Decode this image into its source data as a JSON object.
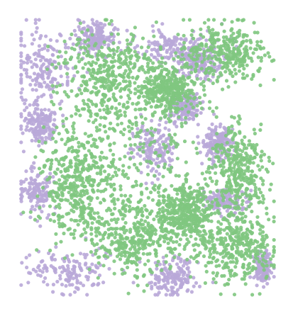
{
  "chart_data": {
    "type": "scatter",
    "title": "",
    "xlabel": "",
    "ylabel": "",
    "grid": false,
    "legend": "none",
    "axes_visible": false,
    "xlim": [
      0,
      1
    ],
    "ylim": [
      0,
      1
    ],
    "series": [
      {
        "color": "#b9a9d8",
        "count": 2100,
        "regions": [
          {
            "cx": 0.1,
            "cy": 0.83,
            "rx": 0.1,
            "ry": 0.12
          },
          {
            "cx": 0.08,
            "cy": 0.62,
            "rx": 0.06,
            "ry": 0.06
          },
          {
            "cx": 0.07,
            "cy": 0.38,
            "rx": 0.07,
            "ry": 0.08
          },
          {
            "cx": 0.2,
            "cy": 0.09,
            "rx": 0.14,
            "ry": 0.07
          },
          {
            "cx": 0.3,
            "cy": 0.93,
            "rx": 0.07,
            "ry": 0.05
          },
          {
            "cx": 0.62,
            "cy": 0.9,
            "rx": 0.14,
            "ry": 0.05
          },
          {
            "cx": 0.7,
            "cy": 0.84,
            "rx": 0.08,
            "ry": 0.05
          },
          {
            "cx": 0.53,
            "cy": 0.53,
            "rx": 0.08,
            "ry": 0.09
          },
          {
            "cx": 0.65,
            "cy": 0.68,
            "rx": 0.06,
            "ry": 0.05
          },
          {
            "cx": 0.78,
            "cy": 0.55,
            "rx": 0.05,
            "ry": 0.06
          },
          {
            "cx": 0.8,
            "cy": 0.34,
            "rx": 0.08,
            "ry": 0.04
          },
          {
            "cx": 0.6,
            "cy": 0.07,
            "rx": 0.1,
            "ry": 0.06
          },
          {
            "cx": 0.95,
            "cy": 0.1,
            "rx": 0.03,
            "ry": 0.05
          }
        ]
      },
      {
        "color": "#7fc77f",
        "count": 3200,
        "regions": [
          {
            "cx": 0.42,
            "cy": 0.5,
            "rx": 0.28,
            "ry": 0.32
          },
          {
            "cx": 0.35,
            "cy": 0.8,
            "rx": 0.18,
            "ry": 0.14
          },
          {
            "cx": 0.8,
            "cy": 0.88,
            "rx": 0.15,
            "ry": 0.1
          },
          {
            "cx": 0.85,
            "cy": 0.45,
            "rx": 0.1,
            "ry": 0.15
          },
          {
            "cx": 0.85,
            "cy": 0.18,
            "rx": 0.14,
            "ry": 0.12
          },
          {
            "cx": 0.45,
            "cy": 0.2,
            "rx": 0.15,
            "ry": 0.12
          },
          {
            "cx": 0.65,
            "cy": 0.3,
            "rx": 0.1,
            "ry": 0.1
          },
          {
            "cx": 0.22,
            "cy": 0.4,
            "rx": 0.12,
            "ry": 0.18
          },
          {
            "cx": 0.58,
            "cy": 0.74,
            "rx": 0.1,
            "ry": 0.08
          }
        ]
      }
    ]
  }
}
